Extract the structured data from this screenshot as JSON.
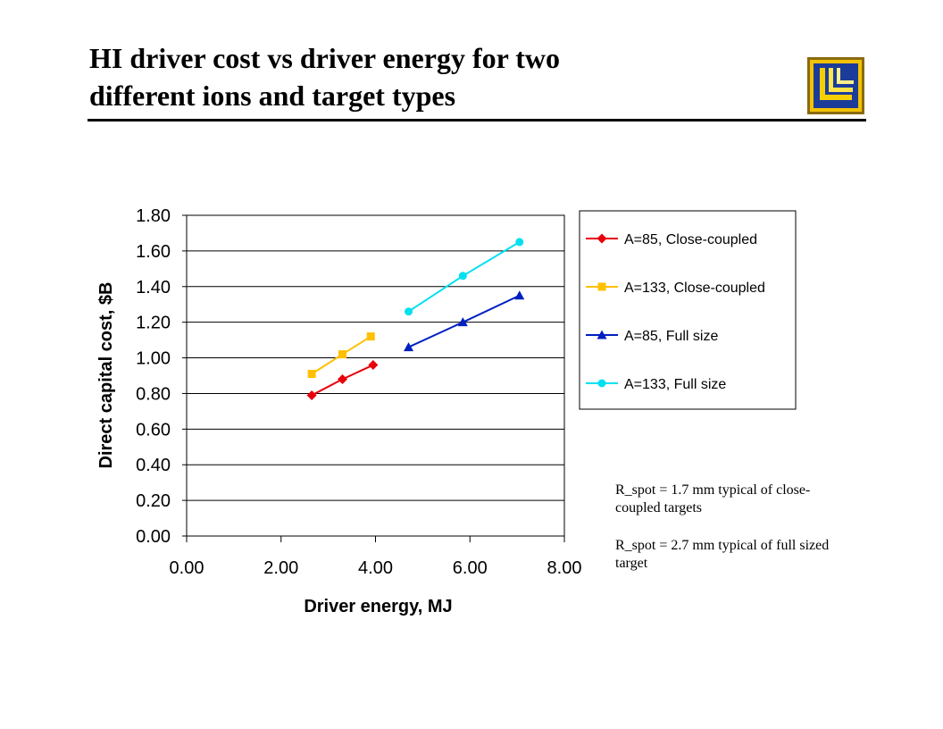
{
  "title_line1": "HI driver cost vs driver energy for two",
  "title_line2": "different ions and target types",
  "notes": [
    "R_spot = 1.7 mm typical of close-coupled targets",
    "R_spot = 2.7 mm typical of full sized target"
  ],
  "chart_data": {
    "type": "line",
    "xlabel": "Driver energy, MJ",
    "ylabel": "Direct capital cost, $B",
    "xlim": [
      0,
      8
    ],
    "ylim": [
      0,
      1.8
    ],
    "x_ticks": [
      "0.00",
      "2.00",
      "4.00",
      "6.00",
      "8.00"
    ],
    "y_ticks": [
      "0.00",
      "0.20",
      "0.40",
      "0.60",
      "0.80",
      "1.00",
      "1.20",
      "1.40",
      "1.60",
      "1.80"
    ],
    "grid": "horizontal",
    "legend_position": "right",
    "series": [
      {
        "name": "A=85, Close-coupled",
        "color": "#e8000b",
        "marker": "diamond",
        "x": [
          2.65,
          3.3,
          3.95
        ],
        "y": [
          0.79,
          0.88,
          0.96
        ]
      },
      {
        "name": "A=133, Close-coupled",
        "color": "#ffc000",
        "marker": "square",
        "x": [
          2.65,
          3.3,
          3.9
        ],
        "y": [
          0.91,
          1.02,
          1.12
        ]
      },
      {
        "name": "A=85, Full size",
        "color": "#0020c0",
        "marker": "triangle",
        "x": [
          4.7,
          5.85,
          7.05
        ],
        "y": [
          1.06,
          1.2,
          1.35
        ]
      },
      {
        "name": "A=133, Full size",
        "color": "#00e0f0",
        "marker": "circle",
        "x": [
          4.7,
          5.85,
          7.05
        ],
        "y": [
          1.26,
          1.46,
          1.65
        ]
      }
    ]
  }
}
